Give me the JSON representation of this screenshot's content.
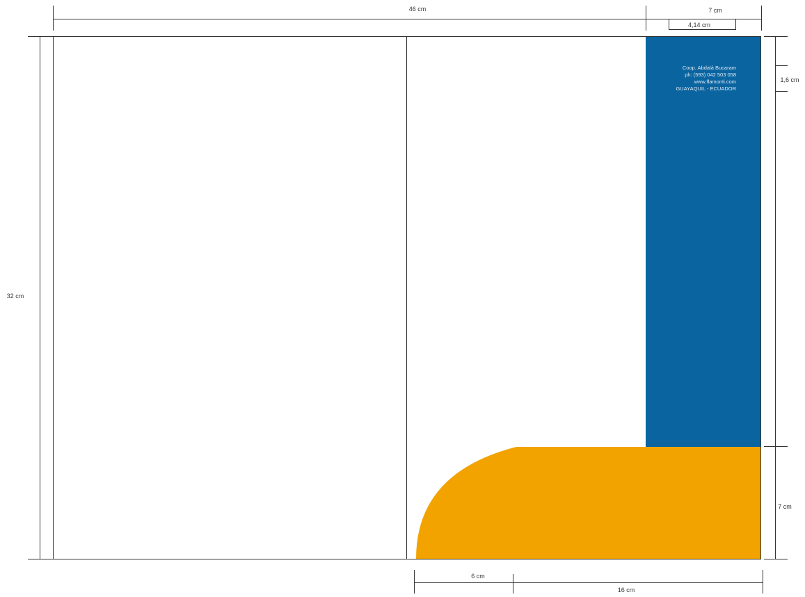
{
  "colors": {
    "flap_blue": "#0a64a0",
    "pocket_orange": "#f2a300",
    "line": "#333333",
    "text_on_blue": "#dfe9f3"
  },
  "dimensions": {
    "total_width": "46 cm",
    "flap_width": "7 cm",
    "contact_block_width": "4,14 cm",
    "total_height": "32 cm",
    "contact_top_offset": "1,6 cm",
    "pocket_height": "7 cm",
    "curve_width": "6 cm",
    "pocket_straight_width": "16 cm"
  },
  "contact": {
    "line1": "Coop. Abdalá Bucaram",
    "line2": "ph: (593) 042 503 058",
    "line3": "www.flamonti.com",
    "line4": "GUAYAQUIL - ECUADOR"
  }
}
